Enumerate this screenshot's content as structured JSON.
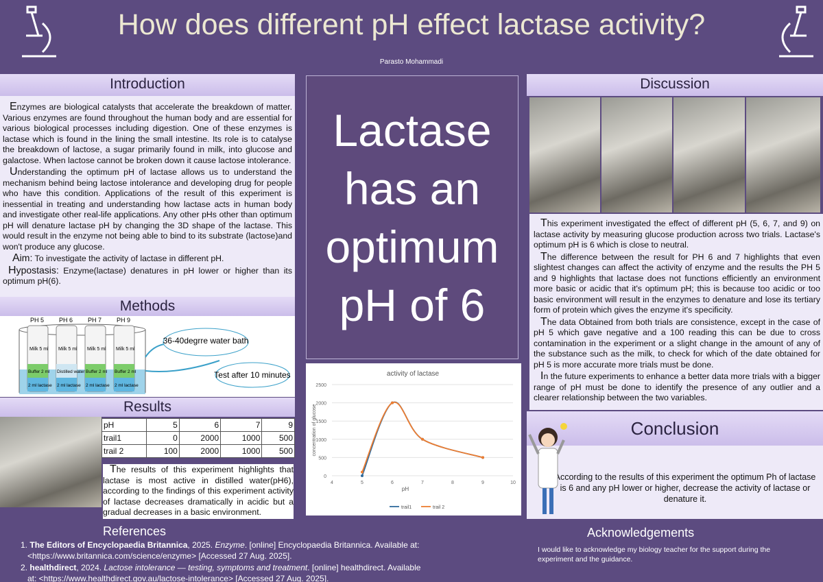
{
  "header": {
    "title": "How does different pH effect lactase activity?",
    "author": "Parasto Mohammadi"
  },
  "introduction": {
    "heading": "Introduction",
    "paragraphs": [
      "Enzymes are biological catalysts that accelerate the breakdown of matter. Various enzymes are found throughout the human body and are essential for various biological processes including digestion. One of these enzymes is lactase which is found in the lining the small intestine. Its role is to catalyse the breakdown of lactose, a sugar primarily found in milk, into glucose and galactose. When lactose cannot be broken down it cause lactose intolerance.",
      "Understanding the optimum pH of lactase allows us to understand the mechanism behind being lactose intolerance and developing drug for people who have this condition. Applications of the result of this experiment is inessential in treating and understanding how lactase acts in human body and investigate other real-life applications. Any other pHs other than optimum pH will denature lactase pH by changing the  3D shape of the lactase. This would result in the enzyme not being able to bind to its substrate (lactose)and won't produce any glucose."
    ],
    "aim": {
      "label": "Aim:",
      "text": "To investigate the activity of lactase in different pH."
    },
    "hypothesis": {
      "label": "Hypostasis:",
      "text": "Enzyme(lactase) denatures in pH lower or higher than its optimum pH(6)."
    }
  },
  "methods": {
    "heading": "Methods",
    "tubes": [
      {
        "ph": "PH 5",
        "top": "Milk 5 ml",
        "mid": "Buffer 2 ml",
        "bottom": "2 ml lactase"
      },
      {
        "ph": "PH 6",
        "top": "Milk 5 ml",
        "mid": "Distilled water 2 ml",
        "bottom": "2 ml lactase"
      },
      {
        "ph": "PH 7",
        "top": "Milk 5 ml",
        "mid": "Buffer 2 ml",
        "bottom": "2 ml lactase"
      },
      {
        "ph": "PH 9",
        "top": "Milk 5 ml",
        "mid": "Buffer 2 ml",
        "bottom": "2 ml lactase"
      }
    ],
    "bath": "36-40degrre water bath",
    "test": "Test after 10 minutes"
  },
  "results": {
    "heading": "Results",
    "table": {
      "rows": [
        [
          "pH",
          "5",
          "6",
          "7",
          "9"
        ],
        [
          "trail1",
          "0",
          "2000",
          "1000",
          "500"
        ],
        [
          "trail 2",
          "100",
          "2000",
          "1000",
          "500"
        ]
      ]
    },
    "text": "The results of this experiment highlights that lactase is most active in distilled water(pH6), according to the findings of this experiment activity of lactase decreases dramatically in acidic but a gradual decreases in a basic environment."
  },
  "highlight": [
    "Lactase",
    "has an",
    "optimum",
    "pH of 6"
  ],
  "chart_data": {
    "type": "line",
    "title": "activity of lactase",
    "x_label": "pH",
    "y_label": "concentration of glucose",
    "x": [
      5,
      6,
      7,
      9
    ],
    "series": [
      {
        "name": "trail1",
        "color": "#2f6a9c",
        "values": [
          0,
          2000,
          1000,
          500
        ]
      },
      {
        "name": "trail 2",
        "color": "#ed7d31",
        "values": [
          100,
          2000,
          1000,
          500
        ]
      }
    ],
    "xlim": [
      4,
      10
    ],
    "xticks": [
      4,
      5,
      6,
      7,
      8,
      9,
      10
    ],
    "ylim": [
      0,
      2500
    ],
    "yticks": [
      0,
      500,
      1000,
      1500,
      2000,
      2500
    ],
    "grid": true,
    "legend": "bottom"
  },
  "discussion": {
    "heading": "Discussion",
    "paragraphs": [
      "This experiment investigated the effect of different pH (5, 6, 7, and 9) on lactase activity by measuring glucose production across two trials. Lactase's optimum pH is 6 which is close to neutral.",
      "The difference between the result for PH 6 and 7 highlights that even slightest changes can affect the activity of enzyme and the results the PH 5 and 9 highlights that lactase  does not  functions efficiently  an environment more basic or acidic that it's optimum pH; this is because too acidic or too basic environment will result in the enzymes to denature and lose its tertiary form of protein which gives the enzyme it's specificity.",
      "The data Obtained from both trials are consistence, except  in the case of pH 5 which gave negative and a 100 reading this can be due to cross contamination in the experiment or a slight change in the amount of any of the substance such as the milk, to check for which of the date obtained for pH 5 is more accurate more trials must be done.",
      "In the future experiments to enhance a better data more trials  with a bigger range of pH must be done to identify the presence of any outlier and a clearer relationship between the two variables."
    ]
  },
  "conclusion": {
    "heading": "Conclusion",
    "text": "According to the results of this experiment the optimum Ph of lactase is 6 and any pH lower or higher, decrease the activity of lactase or denature it."
  },
  "references": {
    "heading": "References",
    "items": [
      {
        "number": "1.",
        "author": "The Editors of Encyclopaedia Britannica",
        "year": ", 2025. ",
        "title": "Enzyme",
        "rest": ". [online] Encyclopaedia Britannica. Available at: <https://www.britannica.com/science/enzyme> [Accessed 27 Aug. 2025]."
      },
      {
        "number": "2.",
        "author": "healthdirect",
        "year": ", 2024. ",
        "title": "Lactose intolerance — testing, symptoms and treatment",
        "rest": ". [online] healthdirect. Available at: <https://www.healthdirect.gov.au/lactose-intolerance> [Accessed 27 Aug. 2025]."
      }
    ]
  },
  "acknowledgements": {
    "heading": "Acknowledgements",
    "text": "I would like to acknowledge my biology teacher for the support during the experiment and the guidance."
  }
}
